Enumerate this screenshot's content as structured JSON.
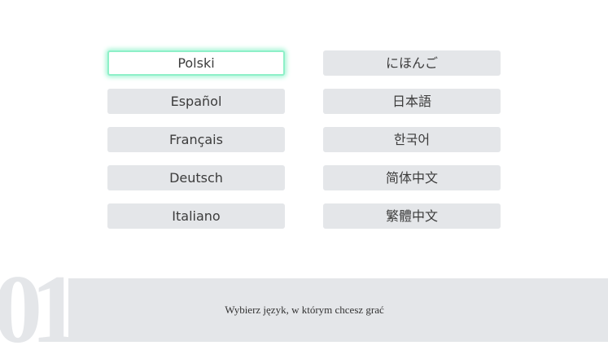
{
  "languages": {
    "left": [
      "Polski",
      "Español",
      "Français",
      "Deutsch",
      "Italiano"
    ],
    "right": [
      "にほんご",
      "日本語",
      "한국어",
      "简体中文",
      "繁體中文"
    ],
    "selected": "Polski"
  },
  "footer": {
    "number": "01",
    "instruction": "Wybierz język, w którym chcesz grać"
  }
}
